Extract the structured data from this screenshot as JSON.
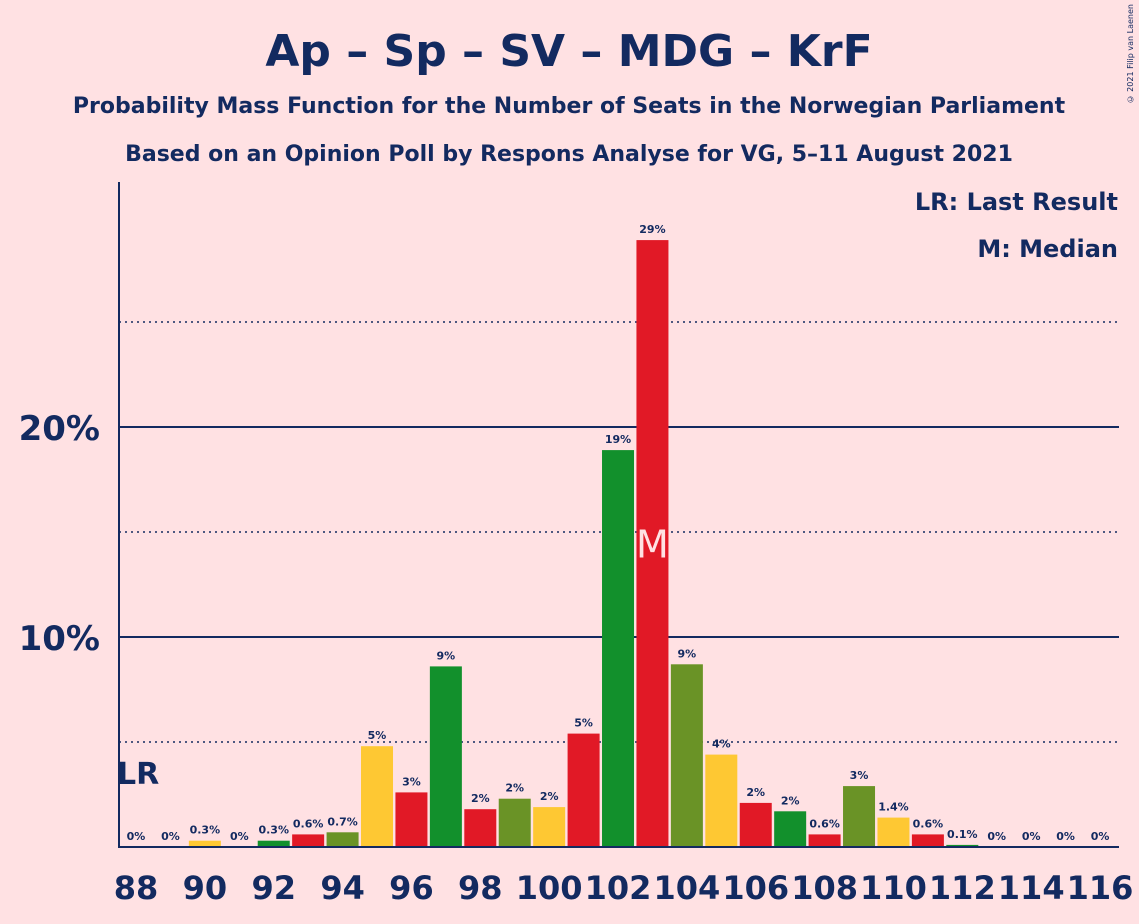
{
  "copyright": "© 2021 Filip van Laenen",
  "chart_data": {
    "type": "bar",
    "title": "Ap – Sp – SV – MDG – KrF",
    "subtitle1": "Probability Mass Function for the Number of Seats in the Norwegian Parliament",
    "subtitle2": "Based on an Opinion Poll by Respons Analyse for VG, 5–11 August 2021",
    "legend": [
      "LR: Last Result",
      "M: Median"
    ],
    "legend_position": "top-right",
    "last_result_label": "LR",
    "last_result_seat": 88,
    "median_label": "M",
    "median_seat": 103,
    "ylim": [
      0,
      31.5
    ],
    "y_major_ticks": [
      10,
      20
    ],
    "y_tick_labels": [
      "10%",
      "20%"
    ],
    "y_minor_gridlines": [
      5,
      15,
      25
    ],
    "x_tick_labels": [
      "88",
      "90",
      "92",
      "94",
      "96",
      "98",
      "100",
      "102",
      "104",
      "106",
      "108",
      "110",
      "112",
      "114",
      "116"
    ],
    "seats": [
      88,
      89,
      90,
      91,
      92,
      93,
      94,
      95,
      96,
      97,
      98,
      99,
      100,
      101,
      102,
      103,
      104,
      105,
      106,
      107,
      108,
      109,
      110,
      111,
      112,
      113,
      114,
      115,
      116
    ],
    "values": [
      0,
      0,
      0.3,
      0,
      0.3,
      0.6,
      0.7,
      4.8,
      2.6,
      8.6,
      1.8,
      2.3,
      1.9,
      5.4,
      18.9,
      28.9,
      8.7,
      4.4,
      2.1,
      1.7,
      0.6,
      2.9,
      1.4,
      0.6,
      0.1,
      0,
      0,
      0,
      0
    ],
    "data_labels": [
      "0%",
      "0%",
      "0.3%",
      "0%",
      "0.3%",
      "0.6%",
      "0.7%",
      "5%",
      "3%",
      "9%",
      "2%",
      "2%",
      "2%",
      "5%",
      "19%",
      "29%",
      "9%",
      "4%",
      "2%",
      "2%",
      "0.6%",
      "3%",
      "1.4%",
      "0.6%",
      "0.1%",
      "0%",
      "0%",
      "0%",
      "0%"
    ],
    "party_colors": [
      "#e11926",
      "#6a9326",
      "#fec833",
      "#e11926",
      "#12902c"
    ]
  }
}
